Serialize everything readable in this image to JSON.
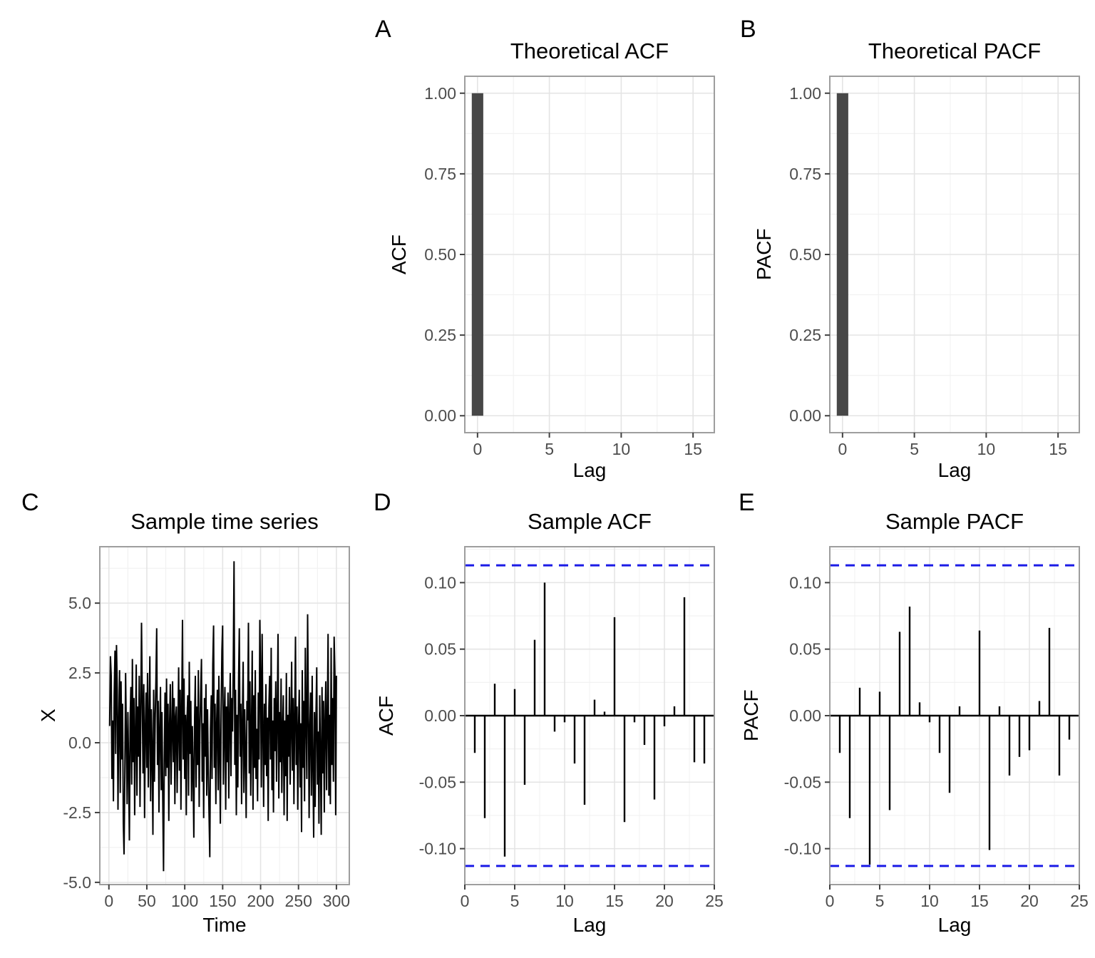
{
  "figure": {
    "background": "#ffffff",
    "colors": {
      "bar_fill": "#474747",
      "stem": "#000000",
      "line": "#000000",
      "conf_dash_blue": "#1b1be6",
      "panel_border": "#9e9e9e",
      "grid_major": "#e4e4e4",
      "grid_minor": "#f1f1f1",
      "tick_mark": "#404040",
      "tick_label": "#4d4d4d"
    }
  },
  "chart_data": [
    {
      "id": "A",
      "letter": "A",
      "type": "bar",
      "title": "Theoretical ACF",
      "xlabel": "Lag",
      "ylabel": "ACF",
      "bars": [
        {
          "x": 0,
          "value": 1.0
        }
      ],
      "bar_width": 0.8,
      "xticks": {
        "vals": [
          0,
          5,
          10,
          15
        ],
        "labels": [
          "0",
          "5",
          "10",
          "15"
        ]
      },
      "yticks": {
        "vals": [
          0,
          0.25,
          0.5,
          0.75,
          1.0
        ],
        "labels": [
          "0.00",
          "0.25",
          "0.50",
          "0.75",
          "1.00"
        ]
      },
      "xlim": [
        -0.885,
        16.48
      ],
      "ylim": [
        -0.0525,
        1.0525
      ],
      "grid": true
    },
    {
      "id": "B",
      "letter": "B",
      "type": "bar",
      "title": "Theoretical PACF",
      "xlabel": "Lag",
      "ylabel": "PACF",
      "bars": [
        {
          "x": 0,
          "value": 1.0
        }
      ],
      "bar_width": 0.8,
      "xticks": {
        "vals": [
          0,
          5,
          10,
          15
        ],
        "labels": [
          "0",
          "5",
          "10",
          "15"
        ]
      },
      "yticks": {
        "vals": [
          0,
          0.25,
          0.5,
          0.75,
          1.0
        ],
        "labels": [
          "0.00",
          "0.25",
          "0.50",
          "0.75",
          "1.00"
        ]
      },
      "xlim": [
        -0.885,
        16.48
      ],
      "ylim": [
        -0.0525,
        1.0525
      ],
      "grid": true
    },
    {
      "id": "C",
      "letter": "C",
      "type": "line",
      "title": "Sample time series",
      "xlabel": "Time",
      "ylabel": "X",
      "x_start": 1,
      "values": [
        0.6,
        3.1,
        2.4,
        -1.3,
        0.8,
        -2.1,
        1.7,
        3.3,
        -0.4,
        3.5,
        1.9,
        -2.4,
        0.7,
        2.6,
        -1.8,
        2.2,
        -0.6,
        1.4,
        -2.9,
        -4.0,
        -1.2,
        2.5,
        0.3,
        -2.2,
        1.1,
        -0.8,
        -3.5,
        0.9,
        2.0,
        -1.5,
        3.0,
        -0.7,
        1.6,
        -2.6,
        0.2,
        2.8,
        -1.9,
        1.3,
        -0.5,
        2.4,
        -2.3,
        0.8,
        4.3,
        1.5,
        -1.1,
        2.1,
        -2.7,
        0.4,
        1.8,
        -0.9,
        2.5,
        -1.6,
        0.6,
        3.1,
        -2.1,
        1.2,
        -0.3,
        -3.3,
        1.9,
        -1.4,
        0.9,
        2.2,
        4.1,
        -0.8,
        1.5,
        -2.5,
        0.3,
        2.0,
        -1.7,
        1.1,
        -2.0,
        -4.6,
        -0.6,
        1.8,
        -1.2,
        2.3,
        -0.9,
        1.4,
        -2.8,
        0.7,
        2.1,
        -1.5,
        0.4,
        2.2,
        -0.7,
        1.6,
        -2.2,
        0.9,
        1.3,
        -1.8,
        0.5,
        2.7,
        -1.0,
        1.9,
        -2.4,
        1.2,
        4.4,
        -0.6,
        2.3,
        -1.3,
        1.0,
        -2.6,
        0.8,
        1.7,
        -1.9,
        2.9,
        -0.4,
        1.5,
        -2.1,
        0.6,
        -1.1,
        -3.4,
        0.9,
        2.4,
        -1.6,
        1.3,
        -0.8,
        2.6,
        -2.3,
        0.4,
        1.8,
        3.0,
        -1.4,
        0.7,
        -2.7,
        1.6,
        -0.5,
        2.1,
        -1.9,
        1.2,
        -0.8,
        -2.5,
        -4.1,
        0.5,
        1.7,
        -1.3,
        2.8,
        4.2,
        -0.9,
        1.4,
        -2.2,
        0.6,
        1.9,
        -1.7,
        2.4,
        -0.3,
        -2.9,
        1.1,
        3.3,
        4.2,
        -1.5,
        0.8,
        2.0,
        -2.4,
        1.3,
        -0.7,
        1.8,
        -2.0,
        0.9,
        2.5,
        -1.2,
        1.6,
        0.4,
        2.7,
        6.5,
        -0.8,
        1.9,
        -2.6,
        1.0,
        -1.6,
        2.3,
        4.1,
        -0.5,
        1.4,
        -2.2,
        0.7,
        2.9,
        -1.8,
        1.2,
        -0.4,
        -2.7,
        1.5,
        0.8,
        4.3,
        -1.1,
        2.2,
        -1.9,
        0.6,
        3.3,
        -2.4,
        1.7,
        -0.9,
        2.6,
        -1.3,
        0.5,
        -2.1,
        1.8,
        -0.6,
        4.4,
        2.4,
        -1.6,
        3.9,
        0.7,
        -2.3,
        1.4,
        -0.8,
        2.1,
        -1.2,
        0.9,
        -2.8,
        1.3,
        2.4,
        -0.6,
        3.4,
        -1.7,
        0.8,
        -2.5,
        1.6,
        -0.3,
        2.2,
        -1.4,
        0.9,
        3.9,
        -2.0,
        1.1,
        -0.7,
        2.3,
        -1.8,
        0.4,
        1.7,
        -2.6,
        0.8,
        -1.2,
        2.5,
        -2.8,
        1.0,
        -0.5,
        2.0,
        -1.5,
        0.6,
        2.9,
        -1.0,
        1.6,
        -2.2,
        0.9,
        3.8,
        -0.8,
        1.3,
        -2.4,
        0.5,
        1.9,
        -1.6,
        0.7,
        -3.2,
        2.6,
        -0.9,
        1.5,
        -2.1,
        3.4,
        0.8,
        -1.3,
        4.6,
        1.2,
        -2.7,
        0.6,
        1.8,
        -1.9,
        2.4,
        -0.7,
        -3.4,
        1.1,
        -2.3,
        0.9,
        2.7,
        -1.5,
        0.4,
        -2.9,
        1.7,
        -0.6,
        -3.3,
        2.0,
        -1.1,
        1.5,
        -2.5,
        0.8,
        2.2,
        -1.7,
        0.6,
        3.9,
        -1.9,
        1.0,
        -2.2,
        3.4,
        -0.8,
        1.6,
        -1.4,
        3.8,
        2.5,
        -2.6,
        2.4
      ],
      "xticks": {
        "vals": [
          0,
          50,
          100,
          150,
          200,
          250,
          300
        ],
        "labels": [
          "0",
          "50",
          "100",
          "150",
          "200",
          "250",
          "300"
        ]
      },
      "yticks": {
        "vals": [
          -5,
          -2.5,
          0,
          2.5,
          5
        ],
        "labels": [
          "-5.0",
          "-2.5",
          "0.0",
          "2.5",
          "5.0"
        ]
      },
      "xlim": [
        -12,
        317
      ],
      "ylim": [
        -5.08,
        7.02
      ],
      "grid": true
    },
    {
      "id": "D",
      "letter": "D",
      "type": "stem",
      "title": "Sample ACF",
      "xlabel": "Lag",
      "ylabel": "ACF",
      "conf_bound": 0.113,
      "lags": [
        1,
        2,
        3,
        4,
        5,
        6,
        7,
        8,
        9,
        10,
        11,
        12,
        13,
        14,
        15,
        16,
        17,
        18,
        19,
        20,
        21,
        22,
        23,
        24
      ],
      "values": [
        -0.028,
        -0.077,
        0.024,
        -0.106,
        0.02,
        -0.052,
        0.057,
        0.1,
        -0.012,
        -0.005,
        -0.036,
        -0.067,
        0.012,
        0.003,
        0.074,
        -0.08,
        -0.005,
        -0.022,
        -0.063,
        -0.008,
        0.007,
        0.089,
        -0.035,
        -0.036
      ],
      "xticks": {
        "vals": [
          0,
          5,
          10,
          15,
          20,
          25
        ],
        "labels": [
          "0",
          "5",
          "10",
          "15",
          "20",
          "25"
        ]
      },
      "yticks": {
        "vals": [
          -0.1,
          -0.05,
          0,
          0.05,
          0.1
        ],
        "labels": [
          "-0.10",
          "-0.05",
          "0.00",
          "0.05",
          "0.10"
        ]
      },
      "xlim": [
        0,
        25
      ],
      "ylim": [
        -0.127,
        0.127
      ],
      "grid": true
    },
    {
      "id": "E",
      "letter": "E",
      "type": "stem",
      "title": "Sample PACF",
      "xlabel": "Lag",
      "ylabel": "PACF",
      "conf_bound": 0.113,
      "lags": [
        1,
        2,
        3,
        4,
        5,
        6,
        7,
        8,
        9,
        10,
        11,
        12,
        13,
        14,
        15,
        16,
        17,
        18,
        19,
        20,
        21,
        22,
        23,
        24
      ],
      "values": [
        -0.028,
        -0.077,
        0.021,
        -0.112,
        0.018,
        -0.071,
        0.063,
        0.082,
        0.01,
        -0.005,
        -0.028,
        -0.058,
        0.007,
        0.0,
        0.064,
        -0.101,
        0.007,
        -0.045,
        -0.031,
        -0.026,
        0.011,
        0.066,
        -0.045,
        -0.018
      ],
      "xticks": {
        "vals": [
          0,
          5,
          10,
          15,
          20,
          25
        ],
        "labels": [
          "0",
          "5",
          "10",
          "15",
          "20",
          "25"
        ]
      },
      "yticks": {
        "vals": [
          -0.1,
          -0.05,
          0,
          0.05,
          0.1
        ],
        "labels": [
          "-0.10",
          "-0.05",
          "0.00",
          "0.05",
          "0.10"
        ]
      },
      "xlim": [
        0,
        25
      ],
      "ylim": [
        -0.127,
        0.127
      ],
      "grid": true
    }
  ]
}
